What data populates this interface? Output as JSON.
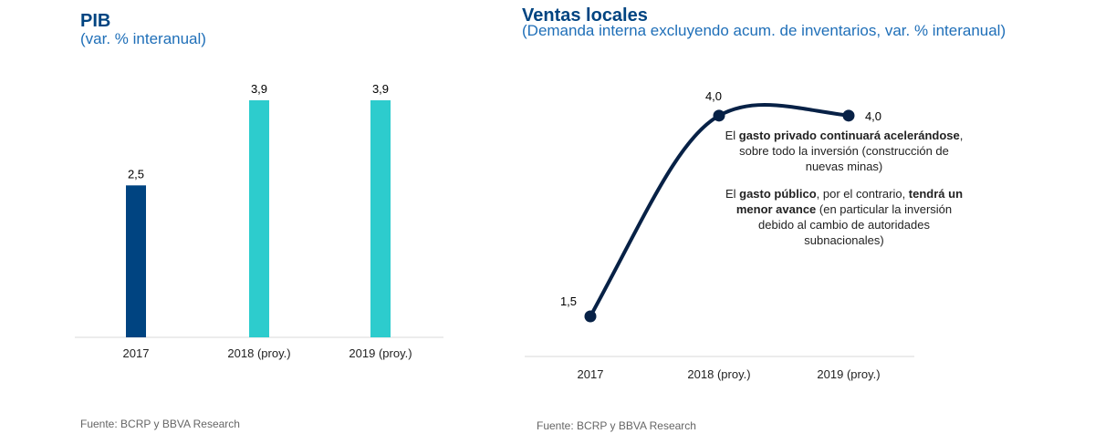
{
  "chart_data": [
    {
      "type": "bar",
      "title": "PIB",
      "subtitle": "(var. % interanual)",
      "categories": [
        "2017",
        "2018 (proy.)",
        "2019 (proy.)"
      ],
      "values": [
        2.5,
        3.9,
        3.9
      ],
      "value_labels": [
        "2,5",
        "3,9",
        "3,9"
      ],
      "bar_colors": [
        "#004481",
        "#2dcccd",
        "#2dcccd"
      ],
      "ylim": [
        0,
        4.5
      ],
      "grid": false,
      "source": "Fuente: BCRP y BBVA Research"
    },
    {
      "type": "line",
      "title": "Ventas locales",
      "subtitle": "(Demanda interna excluyendo acum. de inventarios, var. % interanual)",
      "categories": [
        "2017",
        "2018 (proy.)",
        "2019 (proy.)"
      ],
      "values": [
        1.5,
        4.0,
        4.0
      ],
      "value_labels": [
        "1,5",
        "4,0",
        "4,0"
      ],
      "line_color": "#072146",
      "ylim": [
        1.0,
        4.6
      ],
      "grid": false,
      "annotation": {
        "p1_a": "El ",
        "p1_b": "gasto privado continuará acelerándose",
        "p1_c": ", sobre todo la inversión (construcción de nuevas minas)",
        "p2_a": "El ",
        "p2_b": "gasto público",
        "p2_c": ", por el contrario, ",
        "p2_d": "tendrá un menor avance",
        "p2_e": " (en particular la inversión debido al cambio de autoridades subnacionales)"
      },
      "source": "Fuente: BCRP y BBVA Research"
    }
  ]
}
